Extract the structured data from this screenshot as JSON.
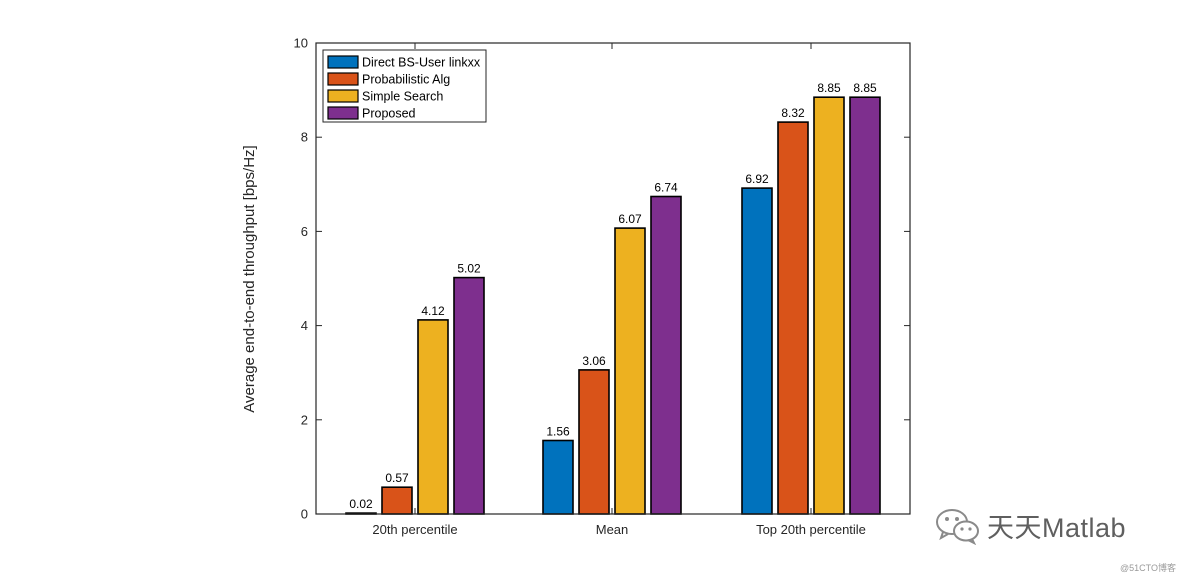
{
  "chart_data": {
    "type": "bar",
    "categories": [
      "20th percentile",
      "Mean",
      "Top 20th percentile"
    ],
    "series": [
      {
        "name": "Direct BS-User linkxx",
        "color": "#0072BD",
        "values": [
          0.02,
          1.56,
          6.92
        ],
        "labels": [
          "0.02",
          "1.56",
          "6.92"
        ]
      },
      {
        "name": "Probabilistic Alg",
        "color": "#D95319",
        "values": [
          0.57,
          3.06,
          8.32
        ],
        "labels": [
          "0.57",
          "3.06",
          "8.32"
        ]
      },
      {
        "name": "Simple Search",
        "color": "#EDB120",
        "values": [
          4.12,
          6.07,
          8.85
        ],
        "labels": [
          "4.12",
          "6.07",
          "8.85"
        ]
      },
      {
        "name": "Proposed",
        "color": "#7E2F8E",
        "values": [
          5.02,
          6.74,
          8.85
        ],
        "labels": [
          "5.02",
          "6.74",
          "8.85"
        ]
      }
    ],
    "ylabel": "Average end-to-end throughput [bps/Hz]",
    "xlabel": "",
    "ylim": [
      0,
      10
    ],
    "yticks": [
      "0",
      "2",
      "4",
      "6",
      "8",
      "10"
    ],
    "legend_position": "top-left",
    "grid": false
  },
  "watermark": {
    "text": "天天Matlab",
    "sub": "@51CTO博客",
    "icon": "wechat-icon"
  }
}
